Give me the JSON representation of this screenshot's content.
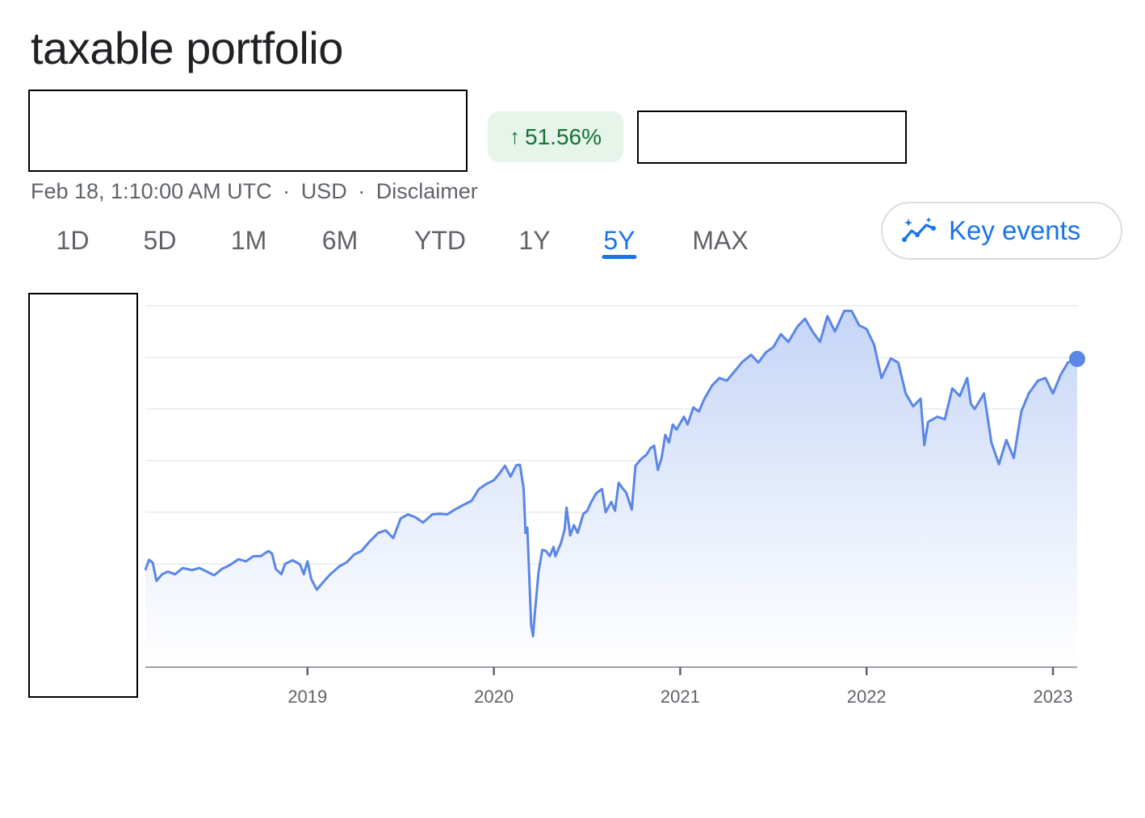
{
  "title": "taxable portfolio",
  "change_badge": {
    "icon": "arrow-up-icon",
    "value": "51.56%",
    "color": "#137333",
    "background": "#e6f4ea"
  },
  "meta": {
    "timestamp": "Feb 18, 1:10:00 AM UTC",
    "currency": "USD",
    "disclaimer": "Disclaimer",
    "separator": "·"
  },
  "range_tabs": [
    {
      "label": "1D",
      "active": false
    },
    {
      "label": "5D",
      "active": false
    },
    {
      "label": "1M",
      "active": false
    },
    {
      "label": "6M",
      "active": false
    },
    {
      "label": "YTD",
      "active": false
    },
    {
      "label": "1Y",
      "active": false
    },
    {
      "label": "5Y",
      "active": true
    },
    {
      "label": "MAX",
      "active": false
    }
  ],
  "key_events": {
    "label": "Key events",
    "icon": "sparkle-trend-icon"
  },
  "colors": {
    "line": "#5a86e6",
    "accent": "#1a73e8",
    "fill_top": "#c9d8f8",
    "grid": "#e8eaed",
    "axis": "#9aa0a6"
  },
  "chart_data": {
    "type": "area",
    "title": "",
    "xlabel": "",
    "ylabel": "",
    "y_tick_labels_hidden": true,
    "gridlines": 7,
    "grid": true,
    "xlim": [
      2018.13,
      2023.13
    ],
    "ylim": [
      0,
      7
    ],
    "x_ticks": [
      {
        "value": 2019.0,
        "label": "2019"
      },
      {
        "value": 2020.0,
        "label": "2020"
      },
      {
        "value": 2021.0,
        "label": "2021"
      },
      {
        "value": 2022.0,
        "label": "2022"
      },
      {
        "value": 2023.0,
        "label": "2023"
      }
    ],
    "series": [
      {
        "points": [
          [
            2018.13,
            1.88
          ],
          [
            2018.15,
            2.08
          ],
          [
            2018.17,
            2.02
          ],
          [
            2018.19,
            1.67
          ],
          [
            2018.22,
            1.8
          ],
          [
            2018.25,
            1.85
          ],
          [
            2018.29,
            1.8
          ],
          [
            2018.33,
            1.92
          ],
          [
            2018.38,
            1.88
          ],
          [
            2018.42,
            1.92
          ],
          [
            2018.46,
            1.85
          ],
          [
            2018.5,
            1.78
          ],
          [
            2018.54,
            1.9
          ],
          [
            2018.58,
            1.97
          ],
          [
            2018.63,
            2.09
          ],
          [
            2018.67,
            2.05
          ],
          [
            2018.71,
            2.15
          ],
          [
            2018.75,
            2.15
          ],
          [
            2018.79,
            2.25
          ],
          [
            2018.81,
            2.2
          ],
          [
            2018.83,
            1.9
          ],
          [
            2018.86,
            1.8
          ],
          [
            2018.88,
            2.0
          ],
          [
            2018.92,
            2.07
          ],
          [
            2018.96,
            1.99
          ],
          [
            2018.98,
            1.8
          ],
          [
            2019.0,
            2.05
          ],
          [
            2019.02,
            1.71
          ],
          [
            2019.05,
            1.5
          ],
          [
            2019.08,
            1.63
          ],
          [
            2019.12,
            1.79
          ],
          [
            2019.17,
            1.95
          ],
          [
            2019.21,
            2.03
          ],
          [
            2019.25,
            2.18
          ],
          [
            2019.29,
            2.25
          ],
          [
            2019.33,
            2.42
          ],
          [
            2019.38,
            2.6
          ],
          [
            2019.42,
            2.65
          ],
          [
            2019.46,
            2.5
          ],
          [
            2019.5,
            2.88
          ],
          [
            2019.54,
            2.96
          ],
          [
            2019.58,
            2.9
          ],
          [
            2019.62,
            2.8
          ],
          [
            2019.67,
            2.96
          ],
          [
            2019.71,
            2.97
          ],
          [
            2019.75,
            2.96
          ],
          [
            2019.79,
            3.05
          ],
          [
            2019.83,
            3.13
          ],
          [
            2019.88,
            3.22
          ],
          [
            2019.92,
            3.45
          ],
          [
            2019.96,
            3.55
          ],
          [
            2020.0,
            3.62
          ],
          [
            2020.03,
            3.75
          ],
          [
            2020.06,
            3.9
          ],
          [
            2020.09,
            3.69
          ],
          [
            2020.12,
            3.91
          ],
          [
            2020.14,
            3.92
          ],
          [
            2020.16,
            3.46
          ],
          [
            2020.17,
            2.6
          ],
          [
            2020.18,
            2.7
          ],
          [
            2020.2,
            0.82
          ],
          [
            2020.21,
            0.6
          ],
          [
            2020.22,
            1.05
          ],
          [
            2020.24,
            1.85
          ],
          [
            2020.26,
            2.27
          ],
          [
            2020.28,
            2.25
          ],
          [
            2020.3,
            2.15
          ],
          [
            2020.32,
            2.33
          ],
          [
            2020.33,
            2.15
          ],
          [
            2020.36,
            2.4
          ],
          [
            2020.38,
            2.67
          ],
          [
            2020.39,
            3.09
          ],
          [
            2020.41,
            2.55
          ],
          [
            2020.43,
            2.75
          ],
          [
            2020.45,
            2.6
          ],
          [
            2020.48,
            2.97
          ],
          [
            2020.5,
            3.02
          ],
          [
            2020.52,
            3.18
          ],
          [
            2020.55,
            3.37
          ],
          [
            2020.58,
            3.45
          ],
          [
            2020.6,
            3.0
          ],
          [
            2020.63,
            3.2
          ],
          [
            2020.65,
            3.03
          ],
          [
            2020.67,
            3.57
          ],
          [
            2020.69,
            3.47
          ],
          [
            2020.71,
            3.38
          ],
          [
            2020.74,
            3.05
          ],
          [
            2020.76,
            3.9
          ],
          [
            2020.79,
            4.03
          ],
          [
            2020.82,
            4.12
          ],
          [
            2020.84,
            4.24
          ],
          [
            2020.86,
            4.29
          ],
          [
            2020.88,
            3.82
          ],
          [
            2020.9,
            4.05
          ],
          [
            2020.92,
            4.5
          ],
          [
            2020.94,
            4.35
          ],
          [
            2020.96,
            4.7
          ],
          [
            2020.98,
            4.6
          ],
          [
            2021.02,
            4.85
          ],
          [
            2021.04,
            4.7
          ],
          [
            2021.07,
            5.03
          ],
          [
            2021.1,
            4.95
          ],
          [
            2021.13,
            5.2
          ],
          [
            2021.17,
            5.45
          ],
          [
            2021.21,
            5.6
          ],
          [
            2021.25,
            5.55
          ],
          [
            2021.29,
            5.72
          ],
          [
            2021.33,
            5.9
          ],
          [
            2021.38,
            6.05
          ],
          [
            2021.42,
            5.9
          ],
          [
            2021.46,
            6.1
          ],
          [
            2021.5,
            6.2
          ],
          [
            2021.54,
            6.45
          ],
          [
            2021.58,
            6.3
          ],
          [
            2021.63,
            6.6
          ],
          [
            2021.67,
            6.75
          ],
          [
            2021.71,
            6.5
          ],
          [
            2021.75,
            6.3
          ],
          [
            2021.79,
            6.8
          ],
          [
            2021.83,
            6.5
          ],
          [
            2021.88,
            6.9
          ],
          [
            2021.92,
            6.9
          ],
          [
            2021.96,
            6.62
          ],
          [
            2022.0,
            6.55
          ],
          [
            2022.04,
            6.25
          ],
          [
            2022.08,
            5.6
          ],
          [
            2022.13,
            5.98
          ],
          [
            2022.17,
            5.9
          ],
          [
            2022.21,
            5.3
          ],
          [
            2022.25,
            5.05
          ],
          [
            2022.29,
            5.2
          ],
          [
            2022.31,
            4.3
          ],
          [
            2022.33,
            4.75
          ],
          [
            2022.38,
            4.85
          ],
          [
            2022.42,
            4.8
          ],
          [
            2022.46,
            5.4
          ],
          [
            2022.5,
            5.25
          ],
          [
            2022.54,
            5.6
          ],
          [
            2022.56,
            5.1
          ],
          [
            2022.58,
            5.0
          ],
          [
            2022.63,
            5.3
          ],
          [
            2022.67,
            4.35
          ],
          [
            2022.71,
            3.93
          ],
          [
            2022.75,
            4.4
          ],
          [
            2022.79,
            4.05
          ],
          [
            2022.83,
            4.95
          ],
          [
            2022.87,
            5.3
          ],
          [
            2022.92,
            5.55
          ],
          [
            2022.96,
            5.6
          ],
          [
            2023.0,
            5.3
          ],
          [
            2023.04,
            5.65
          ],
          [
            2023.08,
            5.9
          ],
          [
            2023.13,
            5.97
          ]
        ]
      }
    ]
  }
}
